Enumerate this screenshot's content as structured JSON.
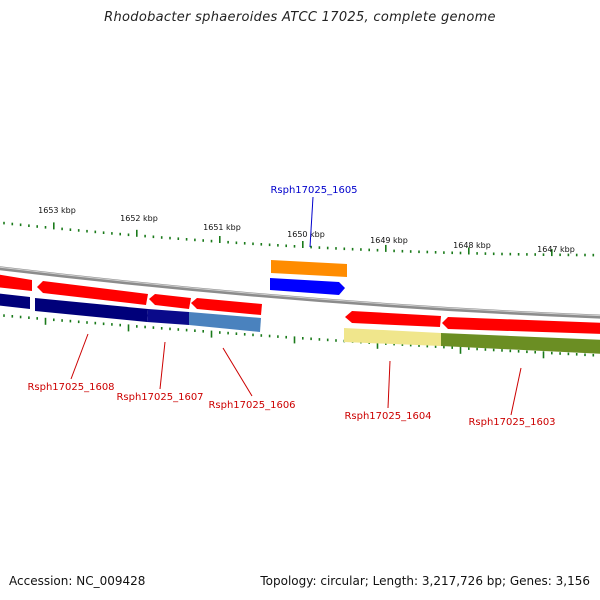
{
  "title": "Rhodobacter sphaeroides ATCC 17025, complete genome",
  "accession": "Accession: NC_009428",
  "topology": "Topology: circular; Length: 3,217,726 bp; Genes: 3,156",
  "scale_labels": [
    "1653 kbp",
    "1652 kbp",
    "1651 kbp",
    "1650 kbp",
    "1649 kbp",
    "1648 kbp",
    "1647 kbp"
  ],
  "genes": [
    {
      "name": "Rsph17025_1608",
      "color": "#cc0000"
    },
    {
      "name": "Rsph17025_1607",
      "color": "#cc0000"
    },
    {
      "name": "Rsph17025_1606",
      "color": "#cc0000"
    },
    {
      "name": "Rsph17025_1605",
      "color": "#0000cc"
    },
    {
      "name": "Rsph17025_1604",
      "color": "#cc0000"
    },
    {
      "name": "Rsph17025_1603",
      "color": "#cc0000"
    }
  ],
  "colors": {
    "backbone": "#8c8c8c",
    "cds_red": "#ff0000",
    "ticks": "#1a7a1a",
    "navy": "#00007a",
    "steelblue": "#4a82be",
    "orange": "#ff8c00",
    "blue": "#0000ff",
    "khaki": "#f0e68c",
    "olive": "#6b8e23"
  }
}
